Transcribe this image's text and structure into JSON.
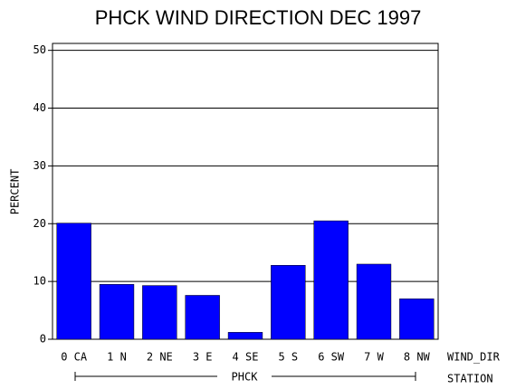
{
  "chart_data": {
    "type": "bar",
    "title": "PHCK WIND DIRECTION DEC 1997",
    "y_label": "PERCENT",
    "x_label": "WIND_DIR",
    "group_label": "STATION",
    "group": "PHCK",
    "categories": [
      "0 CA",
      "1 N",
      "2 NE",
      "3 E",
      "4 SE",
      "5 S",
      "6 SW",
      "7 W",
      "8 NW"
    ],
    "values": [
      20.1,
      9.5,
      9.3,
      7.6,
      1.2,
      12.8,
      20.5,
      13.0,
      7.0
    ],
    "color": "#0000ff",
    "ylim": [
      0,
      51.2
    ],
    "yticks": [
      0,
      10,
      20,
      30,
      40,
      50
    ],
    "grid": true
  }
}
